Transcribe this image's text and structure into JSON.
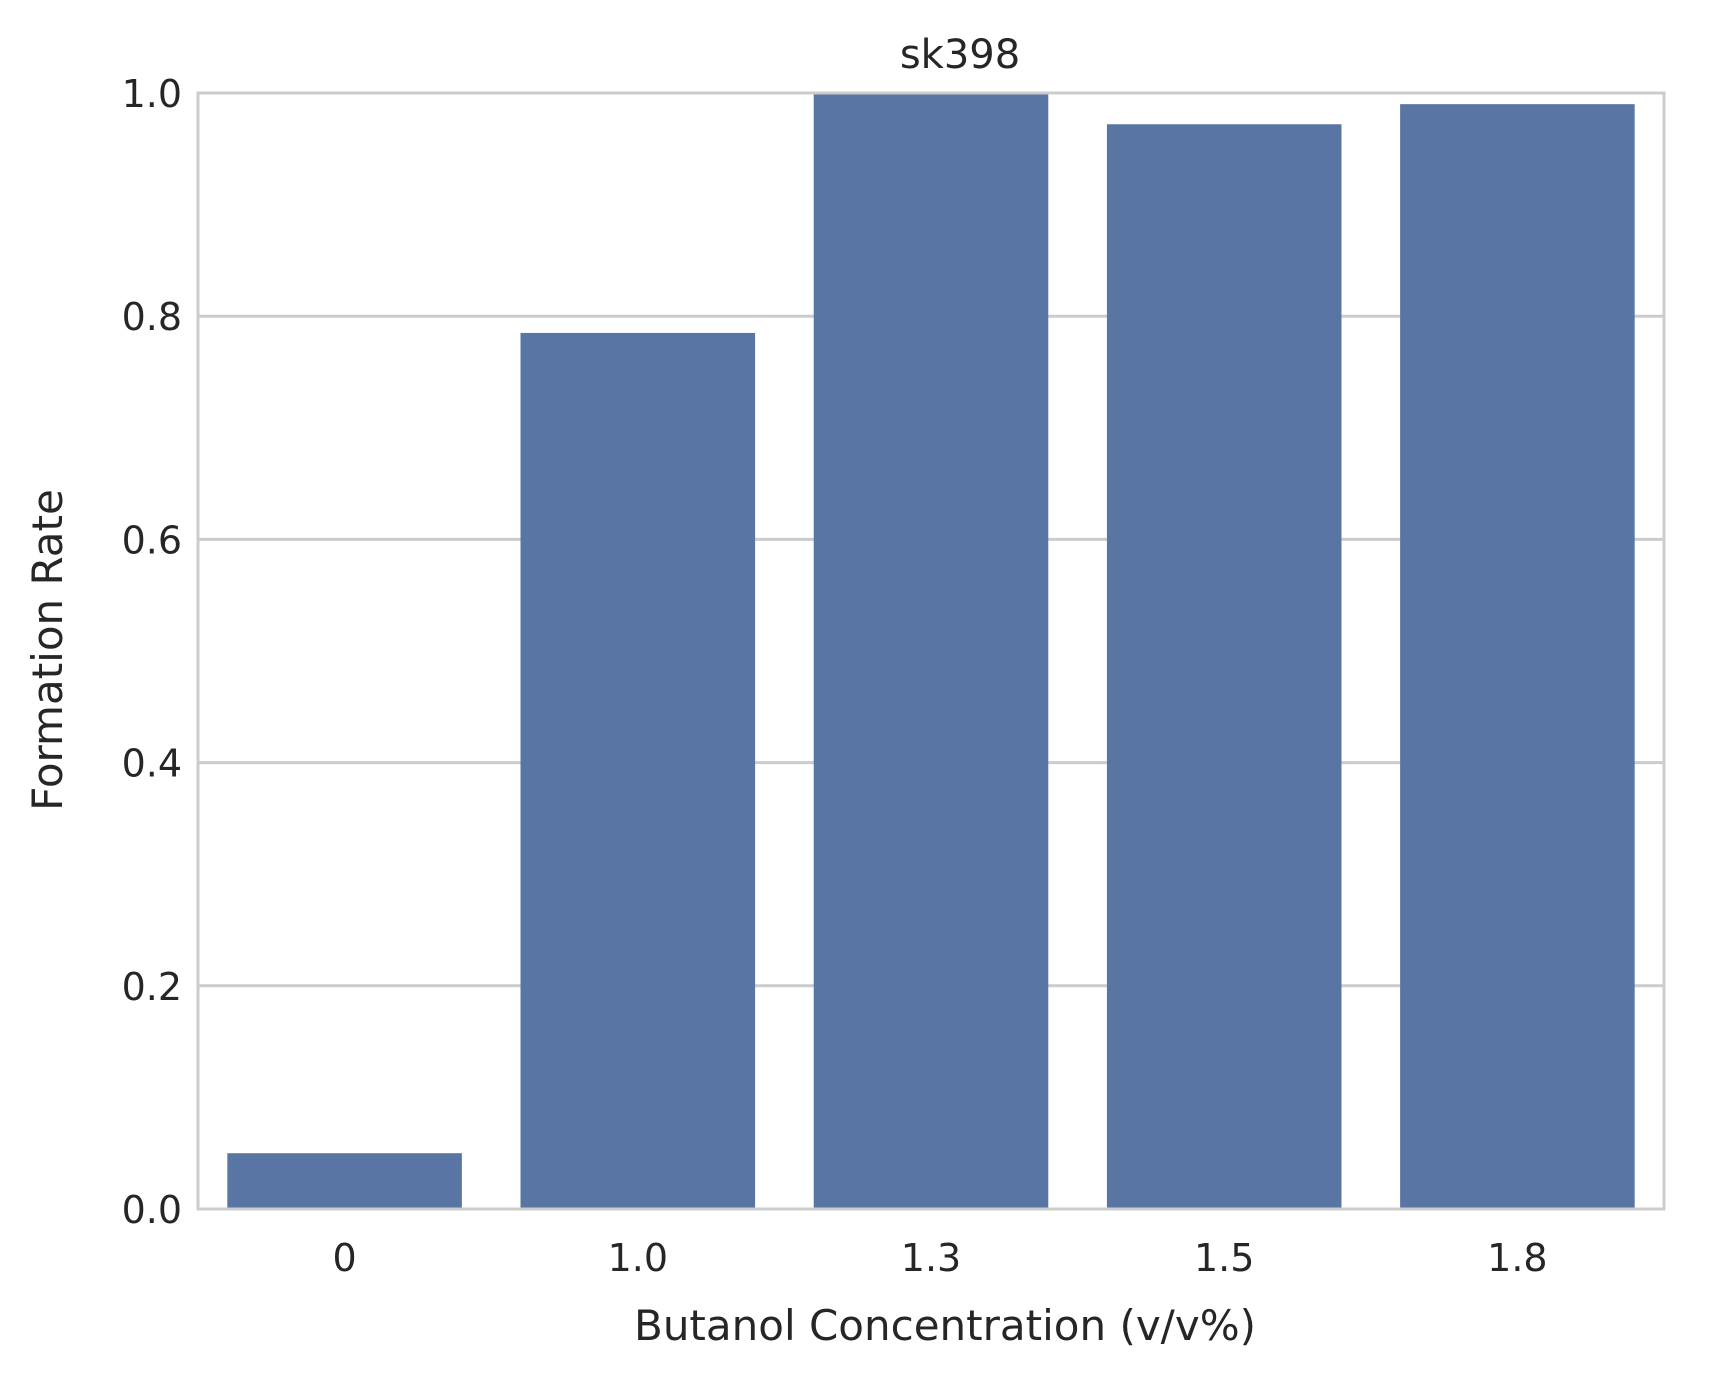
{
  "chart_data": {
    "type": "bar",
    "title": "sk398",
    "xlabel": "Butanol Concentration (v/v%)",
    "ylabel": "Formation Rate",
    "categories": [
      "0",
      "1.0",
      "1.3",
      "1.5",
      "1.8"
    ],
    "values": [
      0.05,
      0.785,
      1.0,
      0.972,
      0.99
    ],
    "ylim": [
      0,
      1.0
    ],
    "yticks": [
      "0.0",
      "0.2",
      "0.4",
      "0.6",
      "0.8",
      "1.0"
    ],
    "grid": true,
    "legend": "none",
    "colors": {
      "bar": "#5975a4",
      "grid": "#cccccc",
      "axes_edge": "#cccccc",
      "text": "#262626"
    }
  }
}
